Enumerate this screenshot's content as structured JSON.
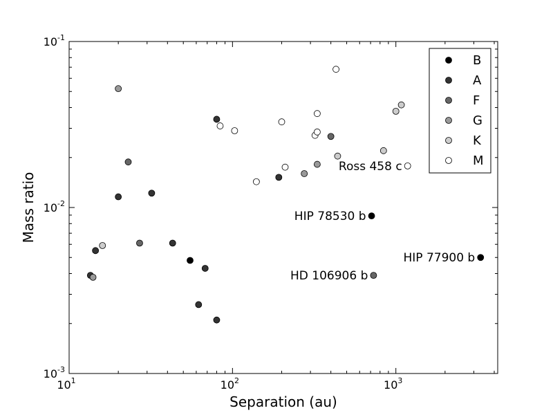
{
  "chart_data": {
    "type": "scatter",
    "xlabel": "Separation (au)",
    "ylabel": "Mass ratio",
    "xscale": "log",
    "yscale": "log",
    "xlim": [
      10,
      4200
    ],
    "ylim": [
      0.001,
      0.1
    ],
    "x_ticks": [
      {
        "value": 10,
        "base": "10",
        "exp": "1"
      },
      {
        "value": 100,
        "base": "10",
        "exp": "2"
      },
      {
        "value": 1000,
        "base": "10",
        "exp": "3"
      }
    ],
    "y_ticks": [
      {
        "value": 0.001,
        "base": "10",
        "exp": "-3"
      },
      {
        "value": 0.01,
        "base": "10",
        "exp": "-2"
      },
      {
        "value": 0.1,
        "base": "10",
        "exp": "-1"
      }
    ],
    "grid": false,
    "legend_position": "top-right",
    "series": [
      {
        "name": "B",
        "color": "#000000",
        "points": [
          {
            "x": 55,
            "y": 0.0048
          },
          {
            "x": 710,
            "y": 0.0089
          },
          {
            "x": 3300,
            "y": 0.005
          }
        ]
      },
      {
        "name": "A",
        "color": "#333333",
        "points": [
          {
            "x": 80,
            "y": 0.034
          },
          {
            "x": 20,
            "y": 0.0116
          },
          {
            "x": 32,
            "y": 0.0122
          },
          {
            "x": 14.5,
            "y": 0.0055
          },
          {
            "x": 43,
            "y": 0.0061
          },
          {
            "x": 68,
            "y": 0.0043
          },
          {
            "x": 62,
            "y": 0.0026
          },
          {
            "x": 80,
            "y": 0.0021
          },
          {
            "x": 192,
            "y": 0.0152
          },
          {
            "x": 13.5,
            "y": 0.0039
          }
        ]
      },
      {
        "name": "F",
        "color": "#666666",
        "points": [
          {
            "x": 23,
            "y": 0.0188
          },
          {
            "x": 27,
            "y": 0.0061
          },
          {
            "x": 400,
            "y": 0.0268
          },
          {
            "x": 730,
            "y": 0.0039
          }
        ]
      },
      {
        "name": "G",
        "color": "#999999",
        "points": [
          {
            "x": 20,
            "y": 0.052
          },
          {
            "x": 14,
            "y": 0.0038
          },
          {
            "x": 275,
            "y": 0.016
          },
          {
            "x": 330,
            "y": 0.0182
          }
        ]
      },
      {
        "name": "K",
        "color": "#cccccc",
        "points": [
          {
            "x": 16,
            "y": 0.0059
          },
          {
            "x": 440,
            "y": 0.0204
          },
          {
            "x": 840,
            "y": 0.022
          },
          {
            "x": 1000,
            "y": 0.038
          },
          {
            "x": 1080,
            "y": 0.0415
          }
        ]
      },
      {
        "name": "M",
        "color": "#ffffff",
        "points": [
          {
            "x": 84,
            "y": 0.031
          },
          {
            "x": 103,
            "y": 0.029
          },
          {
            "x": 140,
            "y": 0.0143
          },
          {
            "x": 200,
            "y": 0.0328
          },
          {
            "x": 210,
            "y": 0.0175
          },
          {
            "x": 320,
            "y": 0.0272
          },
          {
            "x": 330,
            "y": 0.0285
          },
          {
            "x": 330,
            "y": 0.0368
          },
          {
            "x": 430,
            "y": 0.068
          },
          {
            "x": 1180,
            "y": 0.0178
          }
        ]
      }
    ],
    "annotations": [
      {
        "text": "Ross 458 c",
        "x": 1180,
        "y": 0.0178,
        "anchor": "end"
      },
      {
        "text": "HIP 78530 b",
        "x": 710,
        "y": 0.0089,
        "anchor": "end"
      },
      {
        "text": "HIP 77900 b",
        "x": 3300,
        "y": 0.005,
        "anchor": "end"
      },
      {
        "text": "HD 106906 b",
        "x": 730,
        "y": 0.0039,
        "anchor": "end"
      }
    ]
  }
}
